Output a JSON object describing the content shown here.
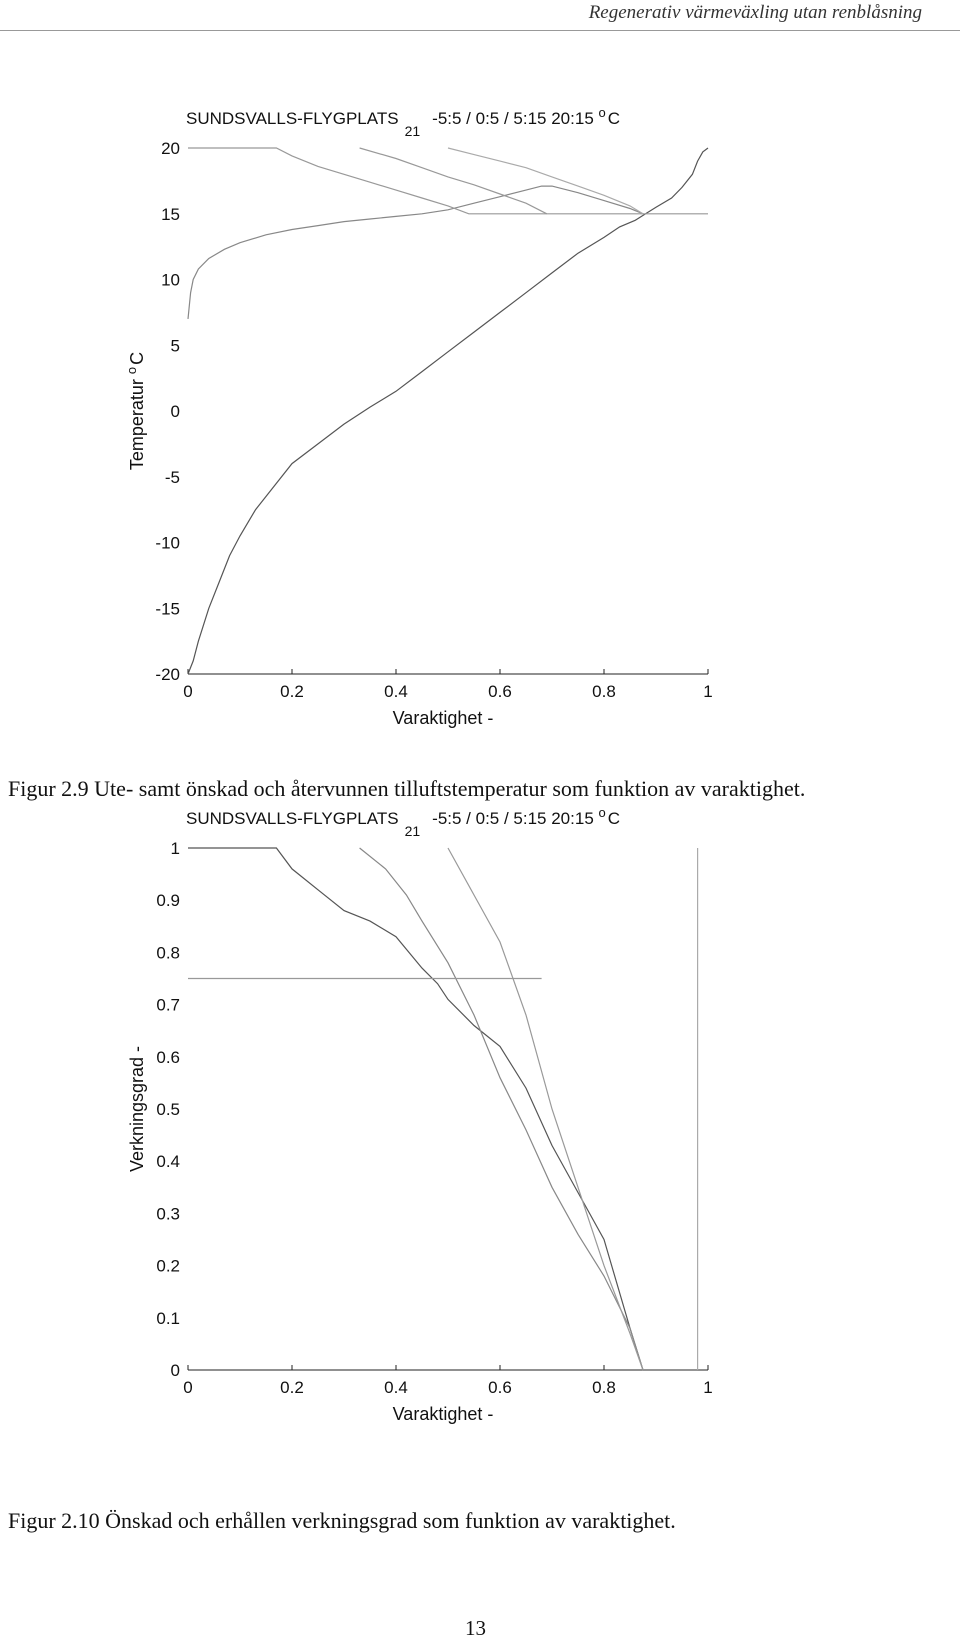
{
  "header": {
    "running_title": "Regenerativ värmeväxling utan renblåsning"
  },
  "figures": [
    {
      "caption": "Figur 2.9 Ute- samt önskad och återvunnen tilluftstemperatur som funktion av varaktighet."
    },
    {
      "caption": "Figur 2.10 Önskad och erhållen verkningsgrad som funktion av varaktighet."
    }
  ],
  "footer": {
    "page_number": "13"
  },
  "chart_data": [
    {
      "type": "line",
      "title": "SUNDSVALLS-FLYGPLATS",
      "title_subscript": "21",
      "title_tail": "-5:5 / 0:5 / 5:15    20:15 ",
      "title_unit": "C",
      "title_unit_sup": "o",
      "xlabel": "Varaktighet  -",
      "ylabel": "Temperatur ",
      "ylabel_sup": "o",
      "ylabel_unit": "C",
      "xlim": [
        0,
        1
      ],
      "ylim": [
        -20,
        20
      ],
      "x_ticks": [
        "0",
        "0.2",
        "0.4",
        "0.6",
        "0.8",
        "1"
      ],
      "y_ticks": [
        "20",
        "15",
        "10",
        "5",
        "0",
        "-5",
        "-10",
        "-15",
        "-20"
      ],
      "series": [
        {
          "x": [
            0.0,
            0.01,
            0.02,
            0.04,
            0.06,
            0.08,
            0.1,
            0.13,
            0.16,
            0.2,
            0.25,
            0.3,
            0.35,
            0.4,
            0.45,
            0.5,
            0.55,
            0.6,
            0.65,
            0.7,
            0.75,
            0.8,
            0.83,
            0.86,
            0.88,
            0.9,
            0.93,
            0.95,
            0.97,
            0.98,
            0.99,
            1.0
          ],
          "y": [
            -20,
            -19,
            -17.5,
            -15,
            -13,
            -11,
            -9.5,
            -7.5,
            -6,
            -4,
            -2.5,
            -1,
            0.3,
            1.5,
            3,
            4.5,
            6,
            7.5,
            9,
            10.5,
            12,
            13.2,
            14,
            14.5,
            15,
            15.5,
            16.2,
            17,
            18,
            19,
            19.7,
            20
          ]
        },
        {
          "x": [
            0.0,
            0.005,
            0.01,
            0.02,
            0.04,
            0.07,
            0.1,
            0.15,
            0.2,
            0.25,
            0.3,
            0.35,
            0.4,
            0.45,
            0.5,
            0.55,
            0.6,
            0.65,
            0.68,
            0.7,
            0.75,
            0.8,
            0.85,
            0.875
          ],
          "y": [
            7,
            9,
            10,
            10.8,
            11.6,
            12.3,
            12.8,
            13.4,
            13.8,
            14.1,
            14.4,
            14.6,
            14.8,
            15,
            15.3,
            15.8,
            16.3,
            16.8,
            17.1,
            17.1,
            16.6,
            16,
            15.4,
            15
          ]
        },
        {
          "x": [
            0.0,
            0.17,
            0.2,
            0.25,
            0.3,
            0.35,
            0.4,
            0.45,
            0.5,
            0.54,
            1.0
          ],
          "y": [
            20,
            20,
            19.4,
            18.6,
            18,
            17.4,
            16.8,
            16.2,
            15.6,
            15,
            15
          ]
        },
        {
          "x": [
            0.33,
            0.4,
            0.45,
            0.5,
            0.55,
            0.6,
            0.65,
            0.69
          ],
          "y": [
            20,
            19.2,
            18.5,
            17.8,
            17.2,
            16.5,
            15.8,
            15
          ]
        },
        {
          "x": [
            0.5,
            0.55,
            0.6,
            0.65,
            0.7,
            0.75,
            0.8,
            0.85,
            0.875
          ],
          "y": [
            20,
            19.5,
            19,
            18.5,
            17.8,
            17.1,
            16.4,
            15.6,
            15
          ]
        }
      ]
    },
    {
      "type": "line",
      "title": "SUNDSVALLS-FLYGPLATS",
      "title_subscript": "21",
      "title_tail": "-5:5 / 0:5 / 5:15    20:15 ",
      "title_unit": "C",
      "title_unit_sup": "o",
      "xlabel": "Varaktighet  -",
      "ylabel": "Verkningsgrad  -",
      "xlim": [
        0,
        1
      ],
      "ylim": [
        0,
        1
      ],
      "x_ticks": [
        "0",
        "0.2",
        "0.4",
        "0.6",
        "0.8",
        "1"
      ],
      "y_ticks": [
        "1",
        "0.9",
        "0.8",
        "0.7",
        "0.6",
        "0.5",
        "0.4",
        "0.3",
        "0.2",
        "0.1",
        "0"
      ],
      "series": [
        {
          "x": [
            0.0,
            0.17,
            0.2,
            0.25,
            0.3,
            0.35,
            0.4,
            0.45,
            0.48,
            0.5,
            0.55,
            0.6,
            0.65,
            0.7,
            0.75,
            0.8,
            0.85,
            0.875,
            0.98
          ],
          "y": [
            1,
            1,
            0.96,
            0.92,
            0.88,
            0.86,
            0.83,
            0.77,
            0.74,
            0.71,
            0.66,
            0.62,
            0.54,
            0.43,
            0.34,
            0.25,
            0.08,
            0,
            0
          ]
        },
        {
          "x": [
            0.33,
            0.38,
            0.42,
            0.45,
            0.5,
            0.55,
            0.6,
            0.65,
            0.7,
            0.75,
            0.8,
            0.85,
            0.875
          ],
          "y": [
            1,
            0.96,
            0.91,
            0.86,
            0.78,
            0.68,
            0.56,
            0.46,
            0.35,
            0.26,
            0.18,
            0.08,
            0
          ]
        },
        {
          "x": [
            0.5,
            0.55,
            0.6,
            0.65,
            0.7,
            0.75,
            0.8,
            0.85,
            0.875
          ],
          "y": [
            1,
            0.91,
            0.82,
            0.68,
            0.5,
            0.35,
            0.2,
            0.07,
            0
          ]
        },
        {
          "x": [
            0.0,
            0.68
          ],
          "y": [
            0.75,
            0.75
          ]
        },
        {
          "x": [
            0.98,
            0.98
          ],
          "y": [
            0,
            1
          ]
        }
      ]
    }
  ]
}
